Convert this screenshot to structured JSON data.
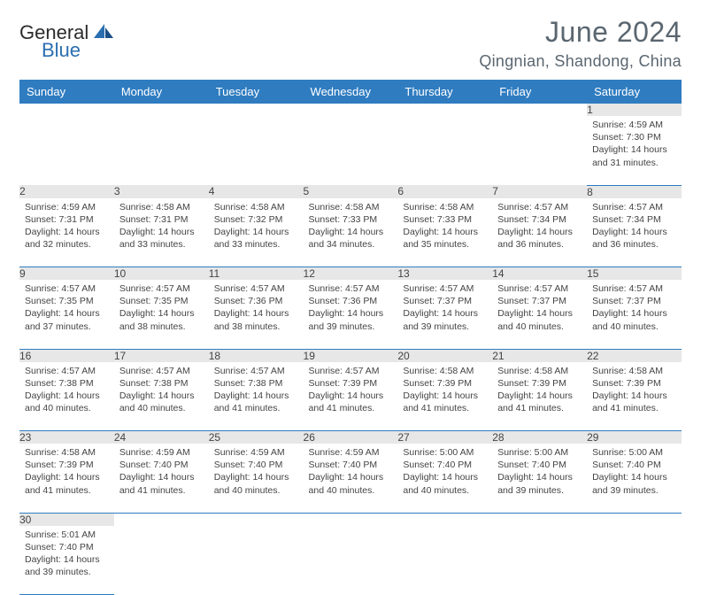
{
  "logo": {
    "part1": "General",
    "part2": "Blue"
  },
  "title": "June 2024",
  "location": "Qingnian, Shandong, China",
  "colors": {
    "header_bg": "#2f7cc0",
    "header_text": "#ffffff",
    "daynum_bg": "#e7e7e7",
    "rule": "#2f7cc0",
    "title": "#5a6670",
    "body_text": "#444444",
    "logo_blue": "#2b6fb0"
  },
  "typography": {
    "title_fontsize": 32,
    "location_fontsize": 18,
    "dayheader_fontsize": 13,
    "daynum_fontsize": 12,
    "body_fontsize": 10.5
  },
  "day_headers": [
    "Sunday",
    "Monday",
    "Tuesday",
    "Wednesday",
    "Thursday",
    "Friday",
    "Saturday"
  ],
  "weeks": [
    [
      null,
      null,
      null,
      null,
      null,
      null,
      {
        "n": "1",
        "sr": "4:59 AM",
        "ss": "7:30 PM",
        "dl": "14 hours and 31 minutes."
      }
    ],
    [
      {
        "n": "2",
        "sr": "4:59 AM",
        "ss": "7:31 PM",
        "dl": "14 hours and 32 minutes."
      },
      {
        "n": "3",
        "sr": "4:58 AM",
        "ss": "7:31 PM",
        "dl": "14 hours and 33 minutes."
      },
      {
        "n": "4",
        "sr": "4:58 AM",
        "ss": "7:32 PM",
        "dl": "14 hours and 33 minutes."
      },
      {
        "n": "5",
        "sr": "4:58 AM",
        "ss": "7:33 PM",
        "dl": "14 hours and 34 minutes."
      },
      {
        "n": "6",
        "sr": "4:58 AM",
        "ss": "7:33 PM",
        "dl": "14 hours and 35 minutes."
      },
      {
        "n": "7",
        "sr": "4:57 AM",
        "ss": "7:34 PM",
        "dl": "14 hours and 36 minutes."
      },
      {
        "n": "8",
        "sr": "4:57 AM",
        "ss": "7:34 PM",
        "dl": "14 hours and 36 minutes."
      }
    ],
    [
      {
        "n": "9",
        "sr": "4:57 AM",
        "ss": "7:35 PM",
        "dl": "14 hours and 37 minutes."
      },
      {
        "n": "10",
        "sr": "4:57 AM",
        "ss": "7:35 PM",
        "dl": "14 hours and 38 minutes."
      },
      {
        "n": "11",
        "sr": "4:57 AM",
        "ss": "7:36 PM",
        "dl": "14 hours and 38 minutes."
      },
      {
        "n": "12",
        "sr": "4:57 AM",
        "ss": "7:36 PM",
        "dl": "14 hours and 39 minutes."
      },
      {
        "n": "13",
        "sr": "4:57 AM",
        "ss": "7:37 PM",
        "dl": "14 hours and 39 minutes."
      },
      {
        "n": "14",
        "sr": "4:57 AM",
        "ss": "7:37 PM",
        "dl": "14 hours and 40 minutes."
      },
      {
        "n": "15",
        "sr": "4:57 AM",
        "ss": "7:37 PM",
        "dl": "14 hours and 40 minutes."
      }
    ],
    [
      {
        "n": "16",
        "sr": "4:57 AM",
        "ss": "7:38 PM",
        "dl": "14 hours and 40 minutes."
      },
      {
        "n": "17",
        "sr": "4:57 AM",
        "ss": "7:38 PM",
        "dl": "14 hours and 40 minutes."
      },
      {
        "n": "18",
        "sr": "4:57 AM",
        "ss": "7:38 PM",
        "dl": "14 hours and 41 minutes."
      },
      {
        "n": "19",
        "sr": "4:57 AM",
        "ss": "7:39 PM",
        "dl": "14 hours and 41 minutes."
      },
      {
        "n": "20",
        "sr": "4:58 AM",
        "ss": "7:39 PM",
        "dl": "14 hours and 41 minutes."
      },
      {
        "n": "21",
        "sr": "4:58 AM",
        "ss": "7:39 PM",
        "dl": "14 hours and 41 minutes."
      },
      {
        "n": "22",
        "sr": "4:58 AM",
        "ss": "7:39 PM",
        "dl": "14 hours and 41 minutes."
      }
    ],
    [
      {
        "n": "23",
        "sr": "4:58 AM",
        "ss": "7:39 PM",
        "dl": "14 hours and 41 minutes."
      },
      {
        "n": "24",
        "sr": "4:59 AM",
        "ss": "7:40 PM",
        "dl": "14 hours and 41 minutes."
      },
      {
        "n": "25",
        "sr": "4:59 AM",
        "ss": "7:40 PM",
        "dl": "14 hours and 40 minutes."
      },
      {
        "n": "26",
        "sr": "4:59 AM",
        "ss": "7:40 PM",
        "dl": "14 hours and 40 minutes."
      },
      {
        "n": "27",
        "sr": "5:00 AM",
        "ss": "7:40 PM",
        "dl": "14 hours and 40 minutes."
      },
      {
        "n": "28",
        "sr": "5:00 AM",
        "ss": "7:40 PM",
        "dl": "14 hours and 39 minutes."
      },
      {
        "n": "29",
        "sr": "5:00 AM",
        "ss": "7:40 PM",
        "dl": "14 hours and 39 minutes."
      }
    ],
    [
      {
        "n": "30",
        "sr": "5:01 AM",
        "ss": "7:40 PM",
        "dl": "14 hours and 39 minutes."
      },
      null,
      null,
      null,
      null,
      null,
      null
    ]
  ],
  "labels": {
    "sunrise": "Sunrise:",
    "sunset": "Sunset:",
    "daylight": "Daylight:"
  }
}
